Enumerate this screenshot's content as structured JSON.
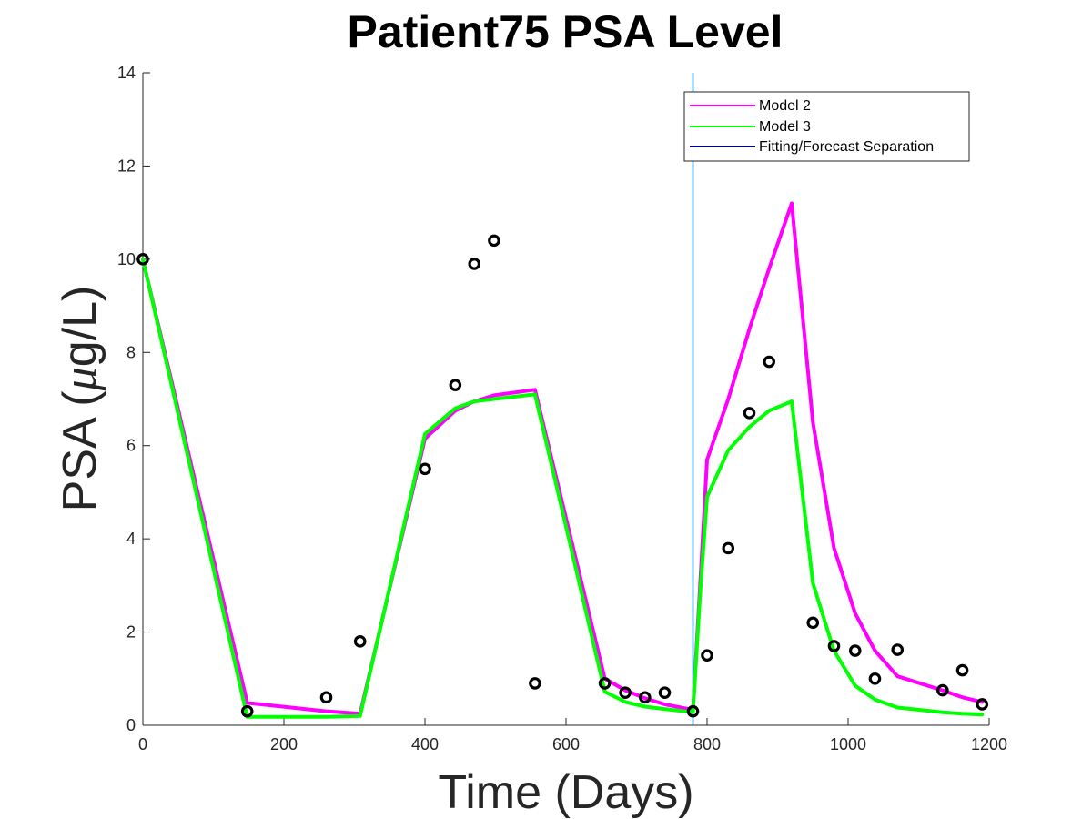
{
  "chart_data": {
    "type": "line",
    "title": "Patient75 PSA Level",
    "xlabel": "Time (Days)",
    "ylabel_prefix": "PSA (",
    "ylabel_mu": "μ",
    "ylabel_suffix": "g/L)",
    "xlim": [
      0,
      1200
    ],
    "ylim": [
      0,
      14
    ],
    "xticks": [
      0,
      200,
      400,
      600,
      800,
      1000,
      1200
    ],
    "yticks": [
      0,
      2,
      4,
      6,
      8,
      10,
      12,
      14
    ],
    "grid": false,
    "legend_position": "top-right",
    "separation_x": 780,
    "series": [
      {
        "name": "Model 2",
        "color": "#ff00ff",
        "x": [
          0,
          148,
          260,
          308,
          400,
          443,
          470,
          498,
          556,
          655,
          684,
          712,
          740,
          780,
          790,
          800,
          830,
          860,
          888,
          920,
          950,
          980,
          1010,
          1038,
          1070,
          1134,
          1162,
          1190
        ],
        "y": [
          10.0,
          0.48,
          0.3,
          0.25,
          6.15,
          6.75,
          6.95,
          7.08,
          7.2,
          1.0,
          0.75,
          0.58,
          0.45,
          0.33,
          3.0,
          5.7,
          7.0,
          8.5,
          9.8,
          11.2,
          6.5,
          3.8,
          2.4,
          1.6,
          1.05,
          0.75,
          0.6,
          0.5
        ]
      },
      {
        "name": "Model 3",
        "color": "#00ff00",
        "x": [
          0,
          148,
          260,
          308,
          400,
          443,
          470,
          498,
          556,
          655,
          684,
          712,
          740,
          780,
          790,
          800,
          830,
          860,
          888,
          920,
          950,
          980,
          1010,
          1038,
          1070,
          1134,
          1162,
          1190
        ],
        "y": [
          10.0,
          0.18,
          0.18,
          0.2,
          6.25,
          6.8,
          6.95,
          7.0,
          7.1,
          0.72,
          0.5,
          0.4,
          0.35,
          0.28,
          2.8,
          4.9,
          5.9,
          6.4,
          6.75,
          6.95,
          3.05,
          1.6,
          0.85,
          0.55,
          0.38,
          0.28,
          0.25,
          0.23
        ]
      }
    ],
    "separation_series": {
      "name": "Fitting/Forecast Separation",
      "color": "#000080",
      "line_color": "#0072bd"
    },
    "observations": {
      "color": "#000000",
      "x": [
        0,
        148,
        260,
        308,
        400,
        443,
        470,
        498,
        556,
        655,
        684,
        712,
        740,
        780,
        800,
        830,
        860,
        888,
        950,
        980,
        1010,
        1038,
        1070,
        1134,
        1162,
        1190
      ],
      "y": [
        10.0,
        0.3,
        0.6,
        1.8,
        5.5,
        7.3,
        9.9,
        10.4,
        0.9,
        0.9,
        0.7,
        0.6,
        0.7,
        0.3,
        1.5,
        3.8,
        6.7,
        7.8,
        2.2,
        1.7,
        1.6,
        1.0,
        1.62,
        0.75,
        1.18,
        0.45
      ]
    }
  }
}
